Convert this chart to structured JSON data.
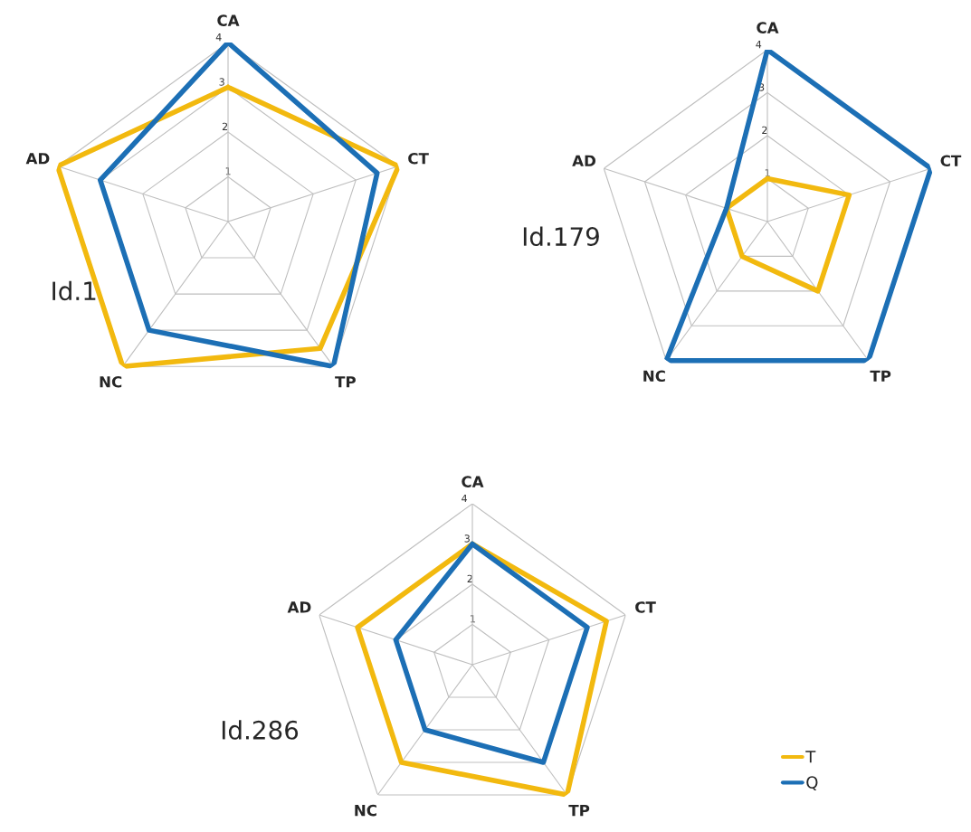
{
  "chart_data": [
    {
      "type": "radar",
      "title": "Id.1",
      "categories": [
        "CA",
        "CT",
        "TP",
        "NC",
        "AD"
      ],
      "ylim": [
        0,
        4
      ],
      "yticks": [
        1,
        2,
        3,
        4
      ],
      "grid": true,
      "legend": false,
      "series": [
        {
          "color": "#f2b90f",
          "values": [
            3,
            4,
            3.5,
            4,
            4
          ]
        },
        {
          "color": "#1c6fb5",
          "values": [
            4,
            3.5,
            4,
            3,
            3
          ]
        }
      ]
    },
    {
      "type": "radar",
      "title": "Id.179",
      "categories": [
        "CA",
        "CT",
        "TP",
        "NC",
        "AD"
      ],
      "ylim": [
        0,
        4
      ],
      "yticks": [
        1,
        2,
        3,
        4
      ],
      "grid": true,
      "legend": false,
      "series": [
        {
          "color": "#f2b90f",
          "values": [
            1,
            2,
            2,
            1,
            1
          ]
        },
        {
          "color": "#1c6fb5",
          "values": [
            4,
            4,
            4,
            4,
            1
          ]
        }
      ]
    },
    {
      "type": "radar",
      "title": "Id.286",
      "categories": [
        "CA",
        "CT",
        "TP",
        "NC",
        "AD"
      ],
      "ylim": [
        0,
        4
      ],
      "yticks": [
        1,
        2,
        3,
        4
      ],
      "grid": true,
      "legend": "bottom right",
      "series": [
        {
          "name": "T",
          "color": "#f2b90f",
          "values": [
            3,
            3.5,
            4,
            3,
            3
          ]
        },
        {
          "name": "Q",
          "color": "#1c6fb5",
          "values": [
            3,
            3,
            3,
            2,
            2
          ]
        }
      ]
    }
  ]
}
